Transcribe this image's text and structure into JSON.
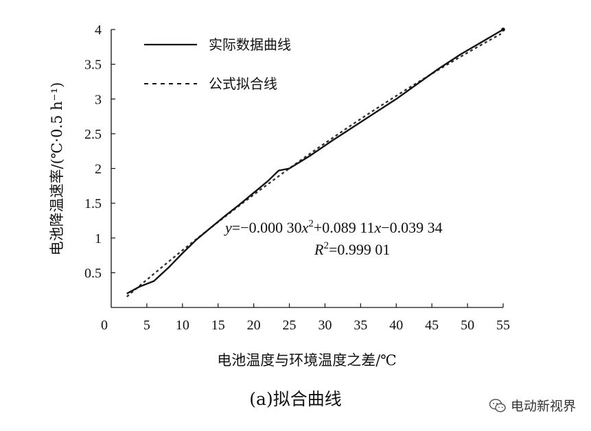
{
  "chart_data": {
    "type": "line",
    "xlabel": "电池温度与环境温度之差/℃",
    "ylabel": "电池降温速率/(℃·0.5 h⁻¹)",
    "xlim": [
      0,
      55
    ],
    "ylim": [
      0,
      4
    ],
    "x_ticks": [
      "0",
      "5",
      "10",
      "15",
      "20",
      "25",
      "30",
      "35",
      "40",
      "45",
      "50",
      "55"
    ],
    "y_ticks": [
      "0.5",
      "1",
      "1.5",
      "2",
      "2.5",
      "3",
      "3.5",
      "4"
    ],
    "series": [
      {
        "name": "实际数据曲线",
        "style": "solid",
        "x": [
          2.2,
          4,
          6,
          8,
          10,
          12,
          14,
          16,
          18,
          20,
          22,
          23.5,
          25,
          28,
          31,
          34,
          37,
          40,
          43,
          46,
          49,
          52,
          55
        ],
        "y": [
          0.2,
          0.3,
          0.38,
          0.57,
          0.78,
          0.98,
          1.15,
          1.32,
          1.48,
          1.65,
          1.82,
          1.97,
          2.0,
          2.19,
          2.4,
          2.6,
          2.8,
          3.0,
          3.22,
          3.44,
          3.64,
          3.82,
          4.0
        ]
      },
      {
        "name": "公式拟合线",
        "style": "dashed",
        "formula": {
          "a": -0.0003,
          "b": 0.08911,
          "c": -0.03934
        },
        "x_range": [
          2.2,
          55
        ]
      }
    ],
    "legend_position": "top-left",
    "annotation": {
      "equation_prefix": "y",
      "equation_part1": "=−0.000 30",
      "equation_var1": "x",
      "equation_exp": "2",
      "equation_part2": "+0.089 11",
      "equation_var2": "x",
      "equation_part3": "−0.039 34",
      "r2_var": "R",
      "r2_exp": "2",
      "r2_value": "=0.999 01"
    }
  },
  "caption": "(a)拟合曲线",
  "watermark": {
    "text": "电动新视界",
    "icon": "wechat-icon"
  }
}
